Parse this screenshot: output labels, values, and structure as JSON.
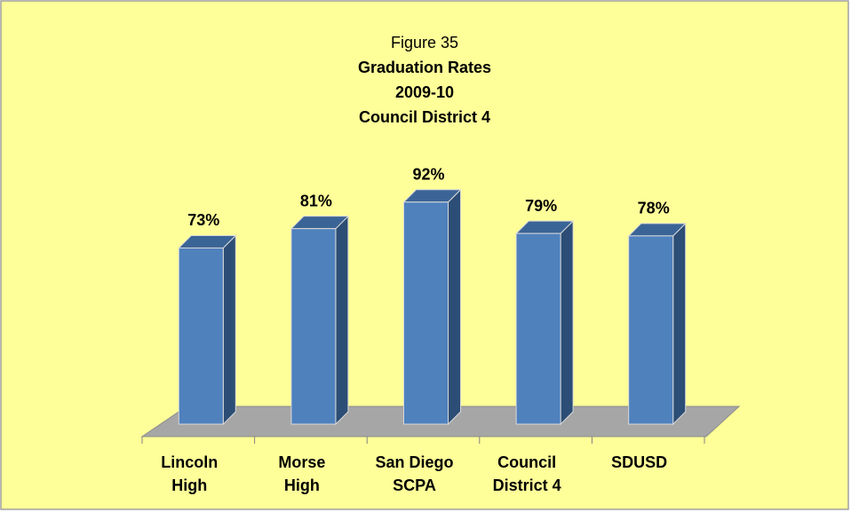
{
  "chart_data": {
    "type": "bar",
    "title": "Figure 35",
    "subtitle": [
      "Graduation Rates",
      "2009-10",
      "Council District 4"
    ],
    "categories": [
      "Lincoln\nHigh",
      "Morse\nHigh",
      "San Diego\nSCPA",
      "Council\nDistrict 4",
      "SDUSD"
    ],
    "values": [
      73,
      81,
      92,
      79,
      78
    ],
    "value_labels": [
      "73%",
      "81%",
      "92%",
      "79%",
      "78%"
    ],
    "color": "#4f81bd"
  }
}
